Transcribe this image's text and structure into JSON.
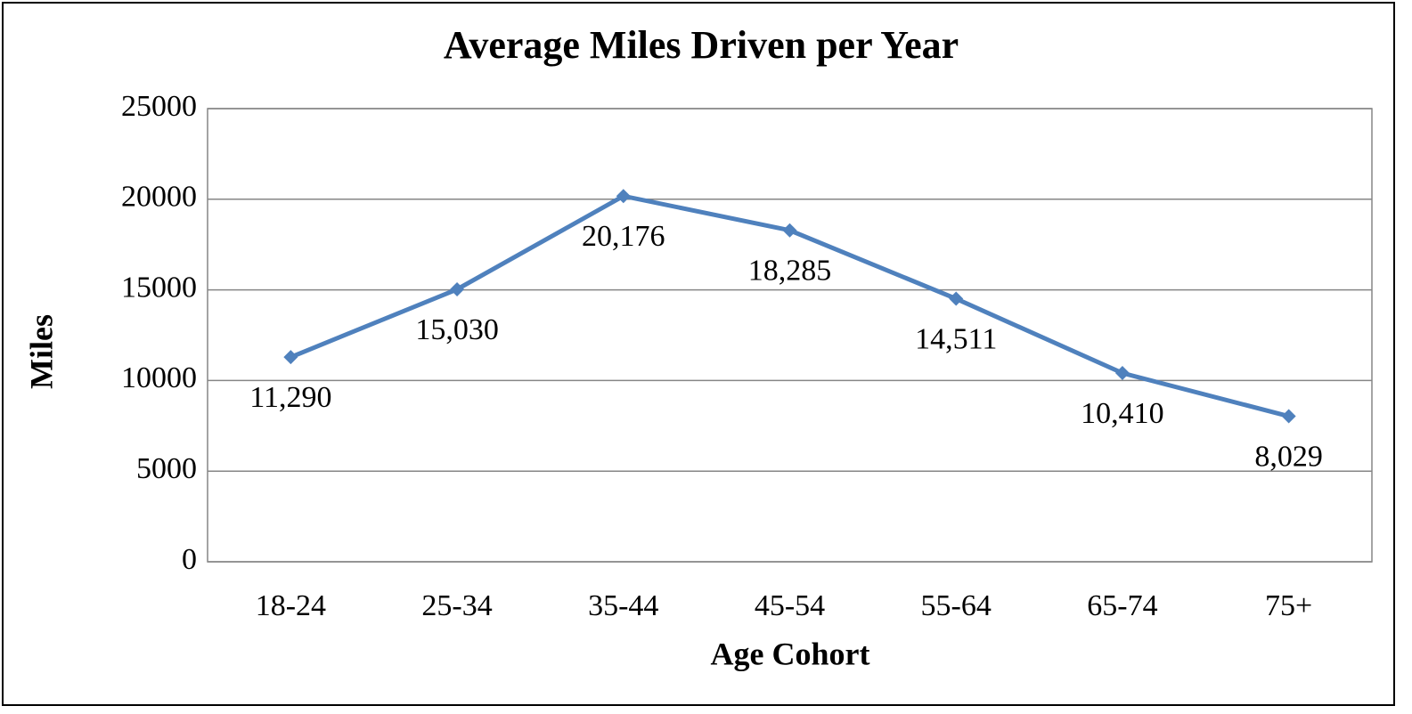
{
  "chart_data": {
    "type": "line",
    "title": "Average Miles Driven per Year",
    "x_label": "Age Cohort",
    "y_label": "Miles",
    "categories": [
      "18-24",
      "25-34",
      "35-44",
      "45-54",
      "55-64",
      "65-74",
      "75+"
    ],
    "series": [
      {
        "name": "Miles",
        "color": "#4f81bd",
        "values": [
          11290,
          15030,
          20176,
          18285,
          14511,
          10410,
          8029
        ],
        "value_labels": [
          "11,290",
          "15,030",
          "20,176",
          "18,285",
          "14,511",
          "10,410",
          "8,029"
        ]
      }
    ],
    "ylim": [
      0,
      25000
    ],
    "yticks": [
      0,
      5000,
      10000,
      15000,
      20000,
      25000
    ],
    "grid": true
  }
}
